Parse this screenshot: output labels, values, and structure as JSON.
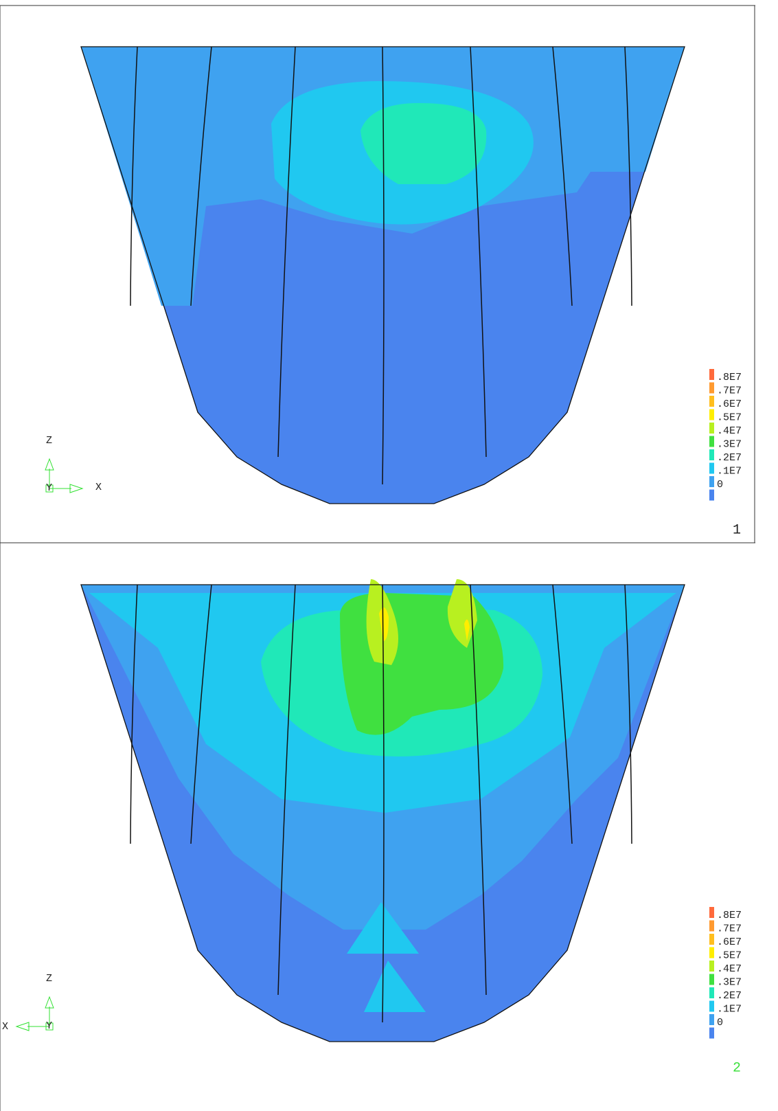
{
  "panels": [
    {
      "number": "1",
      "triad": {
        "z": "Z",
        "y": "Y",
        "x": "X"
      },
      "legend": {
        "labels": [
          ".8E7",
          ".7E7",
          ".6E7",
          ".5E7",
          ".4E7",
          ".3E7",
          ".2E7",
          ".1E7",
          "0"
        ],
        "colors": [
          "#ff6a3c",
          "#ff9a30",
          "#ffbe1e",
          "#ffee00",
          "#b8f020",
          "#40e040",
          "#20e8b8",
          "#20c8f0",
          "#3fa2f0",
          "#4a84ee"
        ]
      }
    },
    {
      "number": "2",
      "triad": {
        "z": "Z",
        "y": "Y",
        "x": "X"
      },
      "legend": {
        "labels": [
          ".8E7",
          ".7E7",
          ".6E7",
          ".5E7",
          ".4E7",
          ".3E7",
          ".2E7",
          ".1E7",
          "0"
        ],
        "colors": [
          "#ff6a3c",
          "#ff9a30",
          "#ffbe1e",
          "#ffee00",
          "#b8f020",
          "#40e040",
          "#20e8b8",
          "#20c8f0",
          "#3fa2f0",
          "#4a84ee"
        ]
      }
    }
  ]
}
